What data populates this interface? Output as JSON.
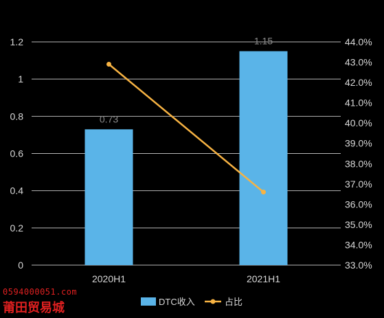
{
  "chart_data": {
    "type": "bar",
    "categories": [
      "2020H1",
      "2021H1"
    ],
    "series": [
      {
        "name": "DTC收入",
        "type": "bar",
        "axis": "left",
        "values": [
          0.73,
          1.15
        ],
        "data_labels": [
          "0.73",
          "1.15"
        ],
        "color": "#5ab4e8"
      },
      {
        "name": "占比",
        "type": "line",
        "axis": "right",
        "values": [
          42.9,
          36.6
        ],
        "color": "#f7b343"
      }
    ],
    "left_axis": {
      "ylim": [
        0,
        1.2
      ],
      "ticks": [
        0,
        0.2,
        0.4,
        0.6,
        0.8,
        1,
        1.2
      ],
      "tick_labels": [
        "0",
        "0.2",
        "0.4",
        "0.6",
        "0.8",
        "1",
        "1.2"
      ]
    },
    "right_axis": {
      "ylim": [
        33,
        44
      ],
      "ticks": [
        33,
        34,
        35,
        36,
        37,
        38,
        39,
        40,
        41,
        42,
        43,
        44
      ],
      "tick_labels": [
        "33.0%",
        "34.0%",
        "35.0%",
        "36.0%",
        "37.0%",
        "38.0%",
        "39.0%",
        "40.0%",
        "41.0%",
        "42.0%",
        "43.0%",
        "44.0%"
      ]
    },
    "grid": true,
    "legend": "bottom",
    "background": "#000000",
    "text_color": "#d9d9d9",
    "grid_color": "#d9d9d9"
  },
  "watermark": {
    "line1": "0594000051.com",
    "line2": "莆田贸易城"
  }
}
